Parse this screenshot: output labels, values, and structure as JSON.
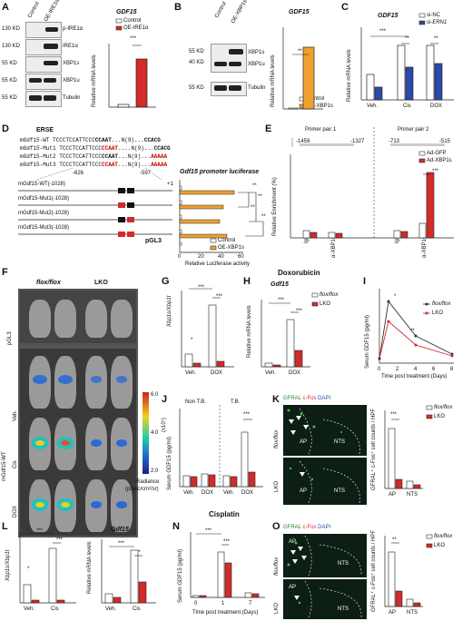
{
  "panels": {
    "A": "A",
    "B": "B",
    "C": "C",
    "D": "D",
    "E": "E",
    "F": "F",
    "G": "G",
    "H": "H",
    "I": "I",
    "J": "J",
    "K": "K",
    "L": "L",
    "M": "M",
    "N": "N",
    "O": "O"
  },
  "A": {
    "lanes": [
      "Control",
      "OE-IRE1α"
    ],
    "mw": [
      "130 KD",
      "130 KD",
      "55 KD",
      "55 KD",
      "55 KD"
    ],
    "bands": [
      "p-IRE1α",
      "IRE1α",
      "XBP1s",
      "XBP1u",
      "Tubulin"
    ],
    "title": "GDF15",
    "ylabel": "Relative mRNA levels",
    "legend": [
      "Control",
      "OE-IRE1α"
    ],
    "sig": "***",
    "yticks": [
      "0",
      "5",
      "10",
      "15",
      "20",
      "25"
    ]
  },
  "B": {
    "lanes": [
      "Control",
      "OE-XBP1s"
    ],
    "mw": [
      "55 KD",
      "40 KD",
      "55 KD"
    ],
    "bands": [
      "XBP1s",
      "XBP1u",
      "Tubulin"
    ],
    "title": "GDF15",
    "ylabel": "Relative mRNA levels",
    "legend": [
      "Control",
      "OE-XBP1s"
    ],
    "sig": "**",
    "yticks": [
      "0",
      "1",
      "2",
      "3",
      "4",
      "5"
    ]
  },
  "C": {
    "title": "GDF15",
    "ylabel": "Relative mRNA levels",
    "legend": [
      "si-NC",
      "si-ERN1"
    ],
    "groups": [
      "Veh.",
      "Cis",
      "DOX"
    ],
    "sig": [
      "***",
      "**",
      "**",
      "*"
    ],
    "yticks": [
      "0",
      "1",
      "2",
      "3",
      "4"
    ]
  },
  "D": {
    "erse": "ERSE",
    "lines": [
      "mGdf15-WT",
      "mGdf15-Mut1",
      "mGdf15-Mut2",
      "mGdf15-Mut3"
    ],
    "s1": [
      "CCAAT",
      "CCAAT.",
      "CCAAT",
      "CCAAT"
    ],
    "s2": [
      "...N(9)...",
      "...N(9)...",
      "...N(9)...",
      "...N(9)..."
    ],
    "s3": [
      "CCACG",
      "CCACG",
      "AAAAA",
      "AAAAA"
    ],
    "pre": "TCCCTCCATTCCC",
    "constructs": [
      "mGdf15-WT(-1028)",
      "mGdf15-Mut1(-1028)",
      "mGdf15-Mut2(-1028)",
      "mGdf15-Mut3(-1028)",
      "pGL3"
    ],
    "pos": [
      "-626",
      "-597",
      "+1"
    ],
    "title": "Gdf15 promoter luciferase",
    "xlabel": "Relative Luciferase activity",
    "xticks": [
      "0",
      "20",
      "40",
      "60"
    ],
    "legend": [
      "Control",
      "OE-XBP1s"
    ],
    "sig": [
      "**",
      "**",
      "**",
      "**"
    ]
  },
  "E": {
    "pp1": "Primer pair 1",
    "pp2": "Primer pair 2",
    "pp1pos": [
      "-1459",
      "-1327"
    ],
    "pp2pos": [
      "-713",
      "-515"
    ],
    "ylabel": "Relative Enrichment (%)",
    "yticks": [
      "0",
      "1",
      "2",
      "3",
      "10",
      "20",
      "30",
      "40",
      "50"
    ],
    "xcats": [
      "IgG",
      "α-XBP1s",
      "IgG",
      "α-XBP1s"
    ],
    "legend": [
      "Ad-GFP",
      "Ad-XBP1s"
    ],
    "sig": "***"
  },
  "F": {
    "cols": [
      "flox/flox",
      "LKO"
    ],
    "rows": [
      "pGL3",
      "Veh.",
      "Cis",
      "DOX"
    ],
    "group": "mGdf15-WT",
    "scale": [
      "6.0",
      "4.0",
      "2.0"
    ],
    "unit": "(x10⁷)",
    "radiance": "Radiance",
    "radunit": "(p/sec/cm²/sr)"
  },
  "header": "Doxorubicin",
  "header2": "Cisplatin",
  "G": {
    "ylabel": "Xbp1s/Xbp1t",
    "groups": [
      "Veh.",
      "DOX"
    ],
    "sig": [
      "*",
      "***",
      "***"
    ],
    "yticks": [
      "0",
      "1",
      "2",
      "3",
      "4",
      "5"
    ]
  },
  "H": {
    "title": "Gdf15",
    "ylabel": "Relative mRNA levels",
    "groups": [
      "Veh.",
      "DOX"
    ],
    "legend": [
      "flox/flox",
      "LKO"
    ],
    "sig": [
      "***",
      "***"
    ],
    "yticks": [
      "0",
      "5",
      "10",
      "15",
      "20"
    ]
  },
  "I": {
    "ylabel": "Serum GDF15 (pg/ml)",
    "xlabel": "Time post treatment (Days)",
    "legend": [
      "flox/flox",
      "LKO"
    ],
    "sig": [
      "*",
      "**"
    ],
    "yticks": [
      "0",
      "20",
      "40",
      "60",
      "80"
    ],
    "xticks": [
      "0",
      "2",
      "4",
      "6",
      "8"
    ]
  },
  "J": {
    "ylabel": "Serum GDF15 (pg/ml)",
    "groups": [
      "Veh.",
      "DOX",
      "Veh.",
      "DOX"
    ],
    "top": [
      "Non T.B.",
      "T.B."
    ],
    "sig": "***",
    "yticks": [
      "0",
      "50",
      "100",
      "150",
      "200"
    ]
  },
  "K": {
    "stain": [
      "GFRAL",
      "c-Fos",
      "DAPI"
    ],
    "rows": [
      "flox/flox",
      "LKO"
    ],
    "regions": [
      "AP",
      "NTS"
    ],
    "ylabel": "GFRAL⁺ c-Fos⁺ cell counts / HPF",
    "sig": "***",
    "legend": [
      "flox/flox",
      "LKO"
    ],
    "xcats": [
      "AP",
      "NTS"
    ],
    "yticks": [
      "0",
      "5",
      "10",
      "15",
      "20"
    ]
  },
  "L": {
    "ylabel": "Xbp1s/Xbp1t",
    "groups": [
      "Veh.",
      "Cis"
    ],
    "sig": [
      "*",
      "***",
      "***"
    ],
    "yticks": [
      "0",
      "1",
      "2",
      "3"
    ]
  },
  "M": {
    "title": "Gdf15",
    "ylabel": "Relative mRNA levels",
    "groups": [
      "Veh.",
      "Cis"
    ],
    "sig": [
      "***",
      "**"
    ],
    "yticks": [
      "0",
      "2",
      "4",
      "6"
    ]
  },
  "N": {
    "ylabel": "Serum GDF15 (pg/ml)",
    "xlabel": "Time post treatment (Days)",
    "groups": [
      "0",
      "1",
      "7"
    ],
    "sig": [
      "***",
      "***"
    ],
    "yticks": [
      "0",
      "50",
      "100",
      "150"
    ]
  },
  "O": {
    "stain": [
      "GFRAL",
      "c-Fos",
      "DAPI"
    ],
    "rows": [
      "flox/flox",
      "LKO"
    ],
    "regions": [
      "AP",
      "NTS"
    ],
    "ylabel": "GFRAL⁺ c-Fos⁺ cell counts / HPF",
    "sig": "**",
    "legend": [
      "flox/flox",
      "LKO"
    ],
    "xcats": [
      "AP",
      "NTS"
    ],
    "yticks": [
      "0",
      "5",
      "10",
      "15",
      "20"
    ]
  },
  "chart_data": [
    {
      "panel": "A",
      "type": "bar",
      "categories": [
        "Control",
        "OE-IRE1α"
      ],
      "values": [
        1,
        19
      ],
      "ylim": [
        0,
        25
      ],
      "title": "GDF15",
      "ylabel": "Relative mRNA levels"
    },
    {
      "panel": "B",
      "type": "bar",
      "categories": [
        "Control",
        "OE-XBP1s"
      ],
      "values": [
        0.1,
        4.2
      ],
      "ylim": [
        0,
        5
      ],
      "title": "GDF15",
      "ylabel": "Relative mRNA levels"
    },
    {
      "panel": "C",
      "type": "bar",
      "categories": [
        "Veh.",
        "Cis",
        "DOX"
      ],
      "series": [
        {
          "name": "si-NC",
          "values": [
            1.4,
            3.0,
            3.0
          ]
        },
        {
          "name": "si-ERN1",
          "values": [
            0.7,
            1.8,
            2.0
          ]
        }
      ],
      "ylim": [
        0,
        4
      ],
      "title": "GDF15",
      "ylabel": "Relative mRNA levels"
    },
    {
      "panel": "D",
      "type": "bar",
      "categories": [
        "mGdf15-WT(-1028)",
        "mGdf15-Mut1(-1028)",
        "mGdf15-Mut2(-1028)",
        "mGdf15-Mut3(-1028)",
        "pGL3"
      ],
      "series": [
        {
          "name": "Control",
          "values": [
            1,
            1,
            1,
            1,
            1
          ]
        },
        {
          "name": "OE-XBP1s",
          "values": [
            55,
            44,
            40,
            48,
            1
          ]
        }
      ],
      "xlim": [
        0,
        60
      ],
      "title": "Gdf15 promoter luciferase",
      "xlabel": "Relative Luciferase activity"
    },
    {
      "panel": "E",
      "type": "bar",
      "categories": [
        "IgG",
        "α-XBP1s",
        "IgG",
        "α-XBP1s"
      ],
      "series": [
        {
          "name": "Ad-GFP",
          "values": [
            0.5,
            0.3,
            0.6,
            1.2
          ]
        },
        {
          "name": "Ad-XBP1s",
          "values": [
            0.4,
            0.3,
            0.6,
            40
          ]
        }
      ],
      "ylabel": "Relative Enrichment (%)"
    },
    {
      "panel": "G",
      "type": "bar",
      "categories": [
        "Veh.",
        "DOX"
      ],
      "series": [
        {
          "name": "flox/flox",
          "values": [
            0.8,
            4.0
          ]
        },
        {
          "name": "LKO",
          "values": [
            0.2,
            0.3
          ]
        }
      ],
      "ylim": [
        0,
        5
      ],
      "ylabel": "Xbp1s/Xbp1t"
    },
    {
      "panel": "H",
      "type": "bar",
      "categories": [
        "Veh.",
        "DOX"
      ],
      "series": [
        {
          "name": "flox/flox",
          "values": [
            1,
            15
          ]
        },
        {
          "name": "LKO",
          "values": [
            0.5,
            5
          ]
        }
      ],
      "ylim": [
        0,
        20
      ],
      "title": "Gdf15",
      "ylabel": "Relative mRNA levels"
    },
    {
      "panel": "I",
      "type": "line",
      "x": [
        0,
        1,
        4,
        8
      ],
      "series": [
        {
          "name": "flox/flox",
          "values": [
            5,
            65,
            30,
            10
          ]
        },
        {
          "name": "LKO",
          "values": [
            5,
            45,
            20,
            8
          ]
        }
      ],
      "ylim": [
        0,
        80
      ],
      "xlim": [
        0,
        8
      ],
      "ylabel": "Serum GDF15 (pg/ml)",
      "xlabel": "Time post treatment (Days)"
    },
    {
      "panel": "J",
      "type": "bar",
      "categories": [
        "Veh.",
        "DOX",
        "Veh.",
        "DOX"
      ],
      "series": [
        {
          "name": "flox/flox",
          "values": [
            20,
            20,
            20,
            110
          ]
        },
        {
          "name": "LKO",
          "values": [
            18,
            18,
            18,
            30
          ]
        }
      ],
      "ylim": [
        0,
        200
      ],
      "ylabel": "Serum GDF15 (pg/ml)"
    },
    {
      "panel": "K",
      "type": "bar",
      "categories": [
        "AP",
        "NTS"
      ],
      "series": [
        {
          "name": "flox/flox",
          "values": [
            14,
            2
          ]
        },
        {
          "name": "LKO",
          "values": [
            2,
            1
          ]
        }
      ],
      "ylim": [
        0,
        20
      ],
      "ylabel": "GFRAL⁺ c-Fos⁺ cell counts / HPF"
    },
    {
      "panel": "L",
      "type": "bar",
      "categories": [
        "Veh.",
        "Cis"
      ],
      "series": [
        {
          "name": "flox/flox",
          "values": [
            0.7,
            2.1
          ]
        },
        {
          "name": "LKO",
          "values": [
            0.1,
            0.1
          ]
        }
      ],
      "ylim": [
        0,
        3
      ],
      "ylabel": "Xbp1s/Xbp1t"
    },
    {
      "panel": "M",
      "type": "bar",
      "categories": [
        "Veh.",
        "Cis"
      ],
      "series": [
        {
          "name": "flox/flox",
          "values": [
            0.9,
            5.0
          ]
        },
        {
          "name": "LKO",
          "values": [
            0.5,
            2.0
          ]
        }
      ],
      "ylim": [
        0,
        6
      ],
      "title": "Gdf15",
      "ylabel": "Relative mRNA levels"
    },
    {
      "panel": "N",
      "type": "bar",
      "categories": [
        "0",
        "1",
        "7"
      ],
      "series": [
        {
          "name": "flox/flox",
          "values": [
            5,
            105,
            10
          ]
        },
        {
          "name": "LKO",
          "values": [
            5,
            80,
            8
          ]
        }
      ],
      "ylim": [
        0,
        150
      ],
      "ylabel": "Serum GDF15 (pg/ml)",
      "xlabel": "Time post treatment (Days)"
    },
    {
      "panel": "O",
      "type": "bar",
      "categories": [
        "AP",
        "NTS"
      ],
      "series": [
        {
          "name": "flox/flox",
          "values": [
            14,
            2
          ]
        },
        {
          "name": "LKO",
          "values": [
            4,
            1
          ]
        }
      ],
      "ylim": [
        0,
        20
      ],
      "ylabel": "GFRAL⁺ c-Fos⁺ cell counts / HPF"
    }
  ]
}
